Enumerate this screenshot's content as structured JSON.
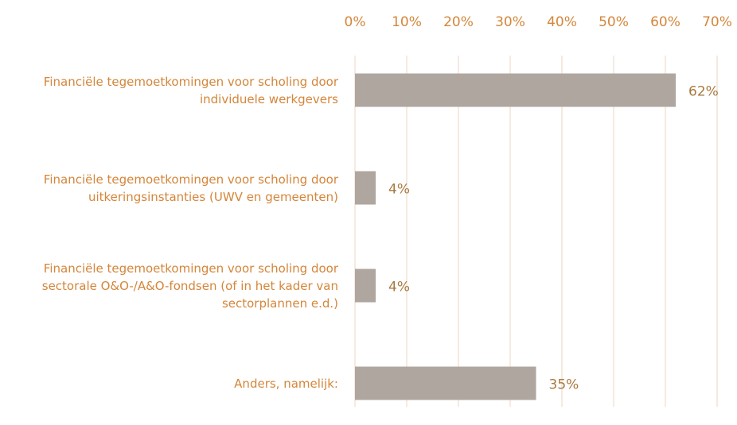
{
  "chart_data": {
    "type": "bar",
    "orientation": "horizontal",
    "categories": [
      "Financiële tegemoetkomingen voor scholing door individuele werkgevers",
      "Financiële tegemoetkomingen voor scholing door uitkeringsinstanties (UWV en gemeenten)",
      "Financiële tegemoetkomingen voor scholing door sectorale O&O-/A&O-fondsen (of in het kader van sectorplannen e.d.)",
      "Anders, namelijk:"
    ],
    "values": [
      62,
      4,
      4,
      35
    ],
    "value_labels": [
      "62%",
      "4%",
      "4%",
      "35%"
    ],
    "color": "#aea69f",
    "xlim": [
      0,
      70
    ],
    "xticks": [
      {
        "value": 0,
        "label": "0%"
      },
      {
        "value": 10,
        "label": "10%"
      },
      {
        "value": 20,
        "label": "20%"
      },
      {
        "value": 30,
        "label": "30%"
      },
      {
        "value": 40,
        "label": "40%"
      },
      {
        "value": 50,
        "label": "50%"
      },
      {
        "value": 60,
        "label": "60%"
      },
      {
        "value": 70,
        "label": "70%"
      }
    ],
    "grid": true
  }
}
